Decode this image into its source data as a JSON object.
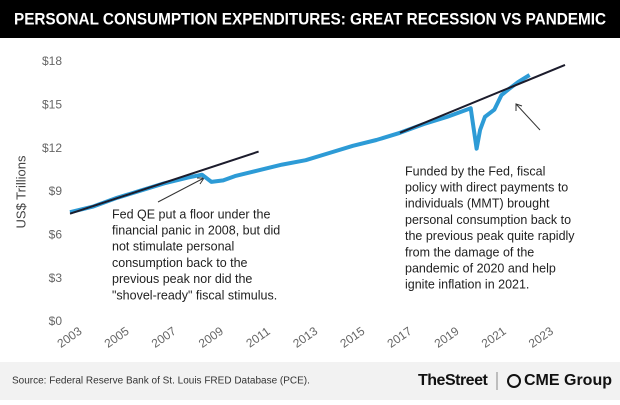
{
  "chart_data": {
    "type": "line",
    "title": "PERSONAL CONSUMPTION EXPENDITURES: GREAT RECESSION VS PANDEMIC",
    "y_label": "US$ Trillions",
    "xlim": [
      2003,
      2024
    ],
    "xticks": [
      2003,
      2005,
      2007,
      2009,
      2011,
      2013,
      2015,
      2017,
      2019,
      2021,
      2023
    ],
    "ylim": [
      0,
      18
    ],
    "yticks": [
      {
        "value": 0,
        "label": "$0"
      },
      {
        "value": 3,
        "label": "$3"
      },
      {
        "value": 6,
        "label": "$6"
      },
      {
        "value": 9,
        "label": "$9"
      },
      {
        "value": 12,
        "label": "$12"
      },
      {
        "value": 15,
        "label": "$15"
      },
      {
        "value": 18,
        "label": "$18"
      }
    ],
    "grid": false,
    "series": [
      {
        "color": "#2d9bd6",
        "width": 4,
        "x": [
          2003,
          2004,
          2005,
          2006,
          2007,
          2008,
          2008.6,
          2009,
          2009.5,
          2010,
          2011,
          2012,
          2013,
          2014,
          2015,
          2016,
          2017,
          2018,
          2019,
          2020,
          2020.25,
          2020.4,
          2020.6,
          2021,
          2021.3,
          2021.6,
          2022,
          2022.5
        ],
        "values": [
          7.6,
          8.0,
          8.6,
          9.1,
          9.6,
          10.0,
          10.2,
          9.7,
          9.8,
          10.1,
          10.5,
          10.9,
          11.2,
          11.7,
          12.2,
          12.6,
          13.1,
          13.7,
          14.2,
          14.8,
          12.0,
          13.3,
          14.2,
          14.7,
          15.7,
          16.1,
          16.6,
          17.1
        ]
      },
      {
        "color": "#1c1c2c",
        "width": 2,
        "x": [
          2003,
          2011
        ],
        "values": [
          7.5,
          11.8
        ]
      },
      {
        "color": "#1c1c2c",
        "width": 2,
        "x": [
          2017,
          2024
        ],
        "values": [
          13.1,
          17.8
        ]
      }
    ],
    "annotations": [
      {
        "lines": [
          "Fed QE put a floor under the",
          "financial panic in 2008, but did",
          "not stimulate personal",
          "consumption back to the",
          "previous peak nor did the",
          "\"shovel-ready\" fiscal stimulus."
        ]
      },
      {
        "lines": [
          "Funded by the Fed, fiscal",
          "policy with direct payments to",
          "individuals (MMT) brought",
          "personal consumption back to",
          "the previous peak quite rapidly",
          "from the damage of the",
          "pandemic of 2020 and help",
          "ignite inflation in 2021."
        ]
      }
    ],
    "source": "Source: Federal Reserve Bank of St. Louis FRED Database (PCE).",
    "logos": [
      "TheStreet",
      "CME Group"
    ]
  }
}
